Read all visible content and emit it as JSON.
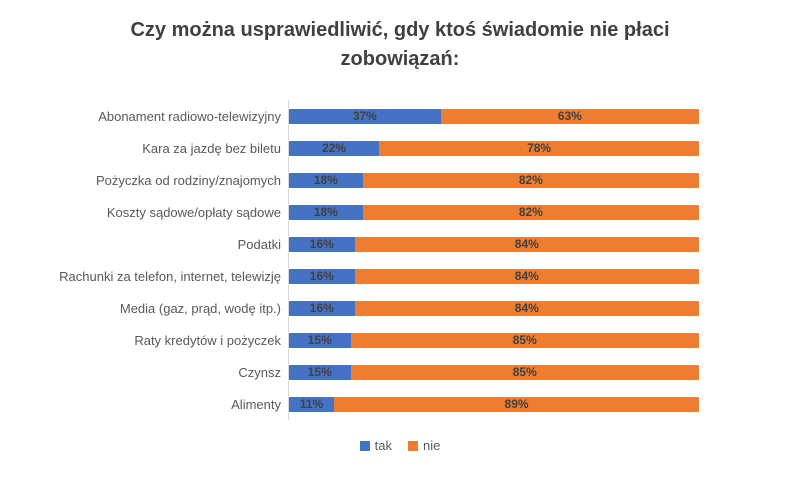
{
  "chart_data": {
    "type": "bar",
    "orientation": "horizontal",
    "stacked": true,
    "title": "Czy można usprawiedliwić, gdy ktoś świadomie nie płaci zobowiązań:",
    "categories": [
      "Abonament radiowo-telewizyjny",
      "Kara za jazdę bez biletu",
      "Pożyczka od rodziny/znajomych",
      "Koszty sądowe/opłaty sądowe",
      "Podatki",
      "Rachunki za telefon, internet, telewizję",
      "Media (gaz, prąd, wodę itp.)",
      "Raty kredytów i pożyczek",
      "Czynsz",
      "Alimenty"
    ],
    "series": [
      {
        "name": "tak",
        "color": "#4472C4",
        "values": [
          37,
          22,
          18,
          18,
          16,
          16,
          16,
          15,
          15,
          11
        ]
      },
      {
        "name": "nie",
        "color": "#ED7D31",
        "values": [
          63,
          78,
          82,
          82,
          84,
          84,
          84,
          85,
          85,
          89
        ]
      }
    ],
    "value_suffix": "%",
    "xlim": [
      0,
      100
    ],
    "grid": false,
    "legend_position": "bottom",
    "data_label_color": "#404040",
    "axis_line_color": "#D9D9D9"
  }
}
